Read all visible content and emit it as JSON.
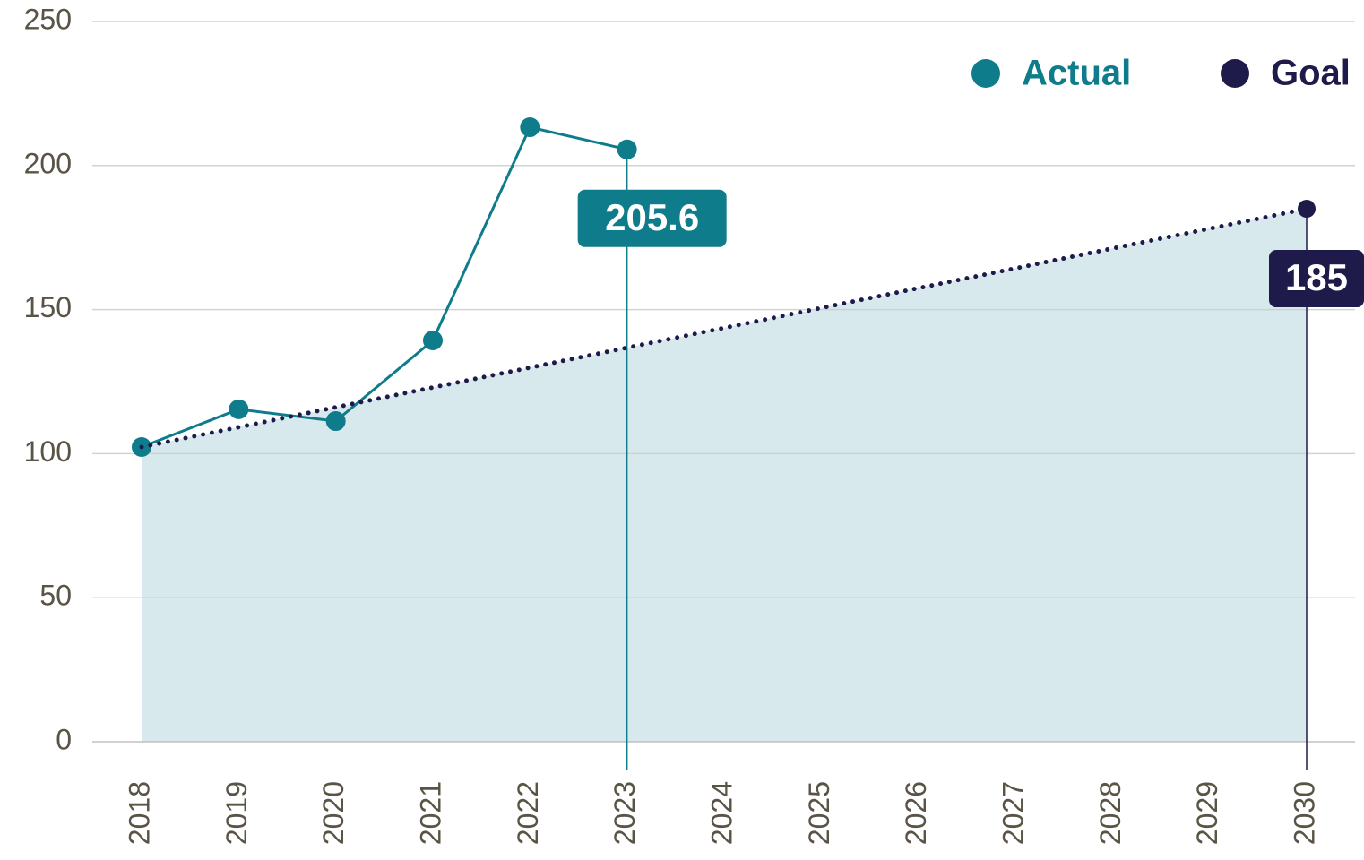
{
  "chart_data": {
    "type": "line",
    "xlim": [
      2018,
      2030
    ],
    "xticks": [
      2018,
      2019,
      2020,
      2021,
      2022,
      2023,
      2024,
      2025,
      2026,
      2027,
      2028,
      2029,
      2030
    ],
    "ylim": [
      0,
      250
    ],
    "yticks": [
      0,
      50,
      100,
      150,
      200,
      250
    ],
    "grid": true,
    "legend": "top-right",
    "series": [
      {
        "name": "Actual",
        "color": "#0e7c8a",
        "x": [
          2018,
          2019,
          2020,
          2021,
          2022,
          2023
        ],
        "values": [
          102.3,
          115.4,
          111.3,
          139.3,
          213.3,
          205.6
        ]
      },
      {
        "name": "Goal",
        "color": "#1e1a4a",
        "x": [
          2018,
          2030
        ],
        "values": [
          102.3,
          185
        ]
      }
    ]
  }
}
